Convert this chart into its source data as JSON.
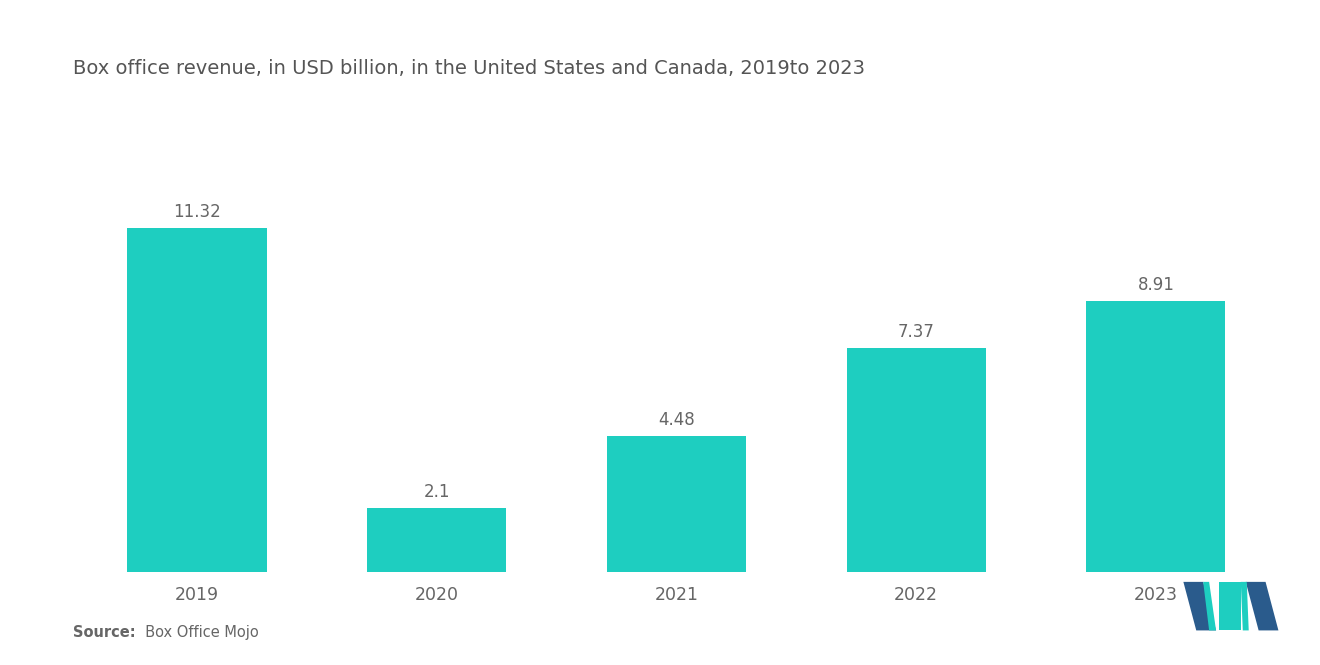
{
  "title": "Box office revenue, in USD billion, in the United States and Canada, 2019to 2023",
  "categories": [
    "2019",
    "2020",
    "2021",
    "2022",
    "2023"
  ],
  "values": [
    11.32,
    2.1,
    4.48,
    7.37,
    8.91
  ],
  "bar_color": "#1ECEC0",
  "background_color": "#ffffff",
  "title_fontsize": 14,
  "label_fontsize": 12,
  "tick_fontsize": 12.5,
  "source_bold": "Source:",
  "source_rest": "  Box Office Mojo",
  "source_fontsize": 10.5,
  "ylim": [
    0,
    14.0
  ],
  "bar_width": 0.58,
  "label_color": "#666666",
  "tick_color": "#666666",
  "title_color": "#555555",
  "logo_navy": "#2A5B8C",
  "logo_teal": "#1ECEC0"
}
